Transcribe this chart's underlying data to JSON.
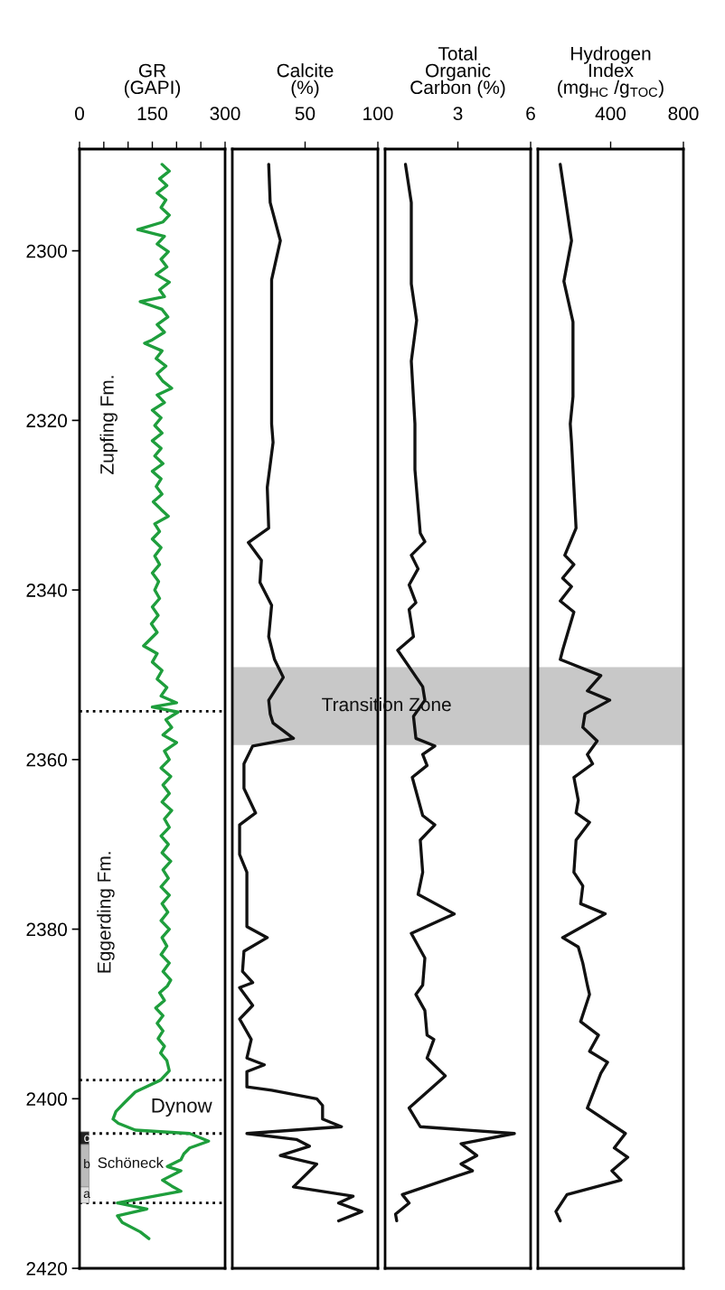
{
  "chart_data": [
    {
      "type": "line",
      "title": "GR\n(GAPI)",
      "orientation": "horizontal",
      "color": "#1e9e3c",
      "x": [
        2289.8,
        2290.6,
        2291.5,
        2292.3,
        2293.2,
        2294.0,
        2294.9,
        2295.8,
        2296.6,
        2297.5,
        2298.3,
        2299.2,
        2300.1,
        2301.0,
        2301.9,
        2302.8,
        2303.7,
        2304.6,
        2305.4,
        2306.0,
        2306.9,
        2307.8,
        2308.7,
        2309.6,
        2310.5,
        2310.9,
        2311.8,
        2312.7,
        2313.6,
        2314.5,
        2315.4,
        2316.2,
        2317.0,
        2317.9,
        2318.8,
        2319.7,
        2320.6,
        2321.5,
        2322.4,
        2323.3,
        2324.2,
        2325.1,
        2326.0,
        2326.9,
        2327.8,
        2328.7,
        2329.6,
        2330.5,
        2331.3,
        2332.2,
        2333.1,
        2334.0,
        2335.0,
        2336.0,
        2337.0,
        2338.0,
        2339.0,
        2340.0,
        2341.0,
        2342.0,
        2343.0,
        2344.0,
        2345.0,
        2346.6,
        2347.5,
        2348.5,
        2349.5,
        2350.5,
        2351.5,
        2352.5,
        2353.3,
        2353.8,
        2354.4,
        2355.3,
        2356.2,
        2357.1,
        2358.0,
        2359.0,
        2360.0,
        2361.0,
        2362.0,
        2363.0,
        2364.0,
        2365.0,
        2366.0,
        2367.0,
        2368.0,
        2369.0,
        2370.0,
        2371.0,
        2372.0,
        2373.0,
        2374.0,
        2375.0,
        2376.0,
        2377.0,
        2378.0,
        2379.0,
        2380.0,
        2381.0,
        2382.0,
        2383.0,
        2384.0,
        2385.0,
        2386.0,
        2386.7,
        2387.5,
        2388.4,
        2389.3,
        2390.2,
        2391.1,
        2392.0,
        2392.9,
        2393.8,
        2394.6,
        2395.5,
        2396.7,
        2397.8,
        2399.2,
        2400.5,
        2401.5,
        2402.4,
        2402.9,
        2403.7,
        2404.1,
        2405.0,
        2405.8,
        2406.5,
        2407.2,
        2408.0,
        2408.5,
        2409.6,
        2410.3,
        2410.9,
        2411.7,
        2412.3,
        2413.0,
        2413.8,
        2414.6,
        2415.7,
        2416.5
      ],
      "values": [
        170,
        185,
        165,
        180,
        160,
        178,
        168,
        185,
        172,
        120,
        175,
        160,
        183,
        168,
        180,
        158,
        185,
        165,
        175,
        125,
        170,
        182,
        160,
        175,
        150,
        134,
        170,
        158,
        178,
        160,
        172,
        190,
        160,
        175,
        150,
        168,
        155,
        170,
        150,
        168,
        155,
        172,
        150,
        168,
        158,
        170,
        152,
        168,
        183,
        155,
        165,
        150,
        168,
        155,
        165,
        150,
        163,
        155,
        165,
        150,
        162,
        148,
        160,
        132,
        160,
        150,
        170,
        160,
        180,
        168,
        200,
        150,
        203,
        178,
        190,
        172,
        200,
        175,
        185,
        168,
        188,
        172,
        185,
        170,
        190,
        175,
        185,
        168,
        183,
        170,
        188,
        172,
        183,
        168,
        185,
        170,
        182,
        168,
        185,
        170,
        180,
        168,
        185,
        172,
        188,
        181,
        165,
        175,
        157,
        172,
        160,
        172,
        162,
        175,
        167,
        180,
        185,
        167,
        115,
        92,
        75,
        69,
        80,
        115,
        227,
        266,
        227,
        215,
        209,
        181,
        209,
        171,
        190,
        209,
        134,
        78,
        139,
        78,
        88,
        125,
        143
      ],
      "xlim": [
        0,
        300
      ],
      "xticks": [
        0,
        {
          "value": 50,
          "label": null
        },
        {
          "value": 100,
          "label": null
        },
        150,
        {
          "value": 200,
          "label": null
        },
        {
          "value": 250,
          "label": null
        },
        300
      ],
      "ylim": [
        2420,
        2288
      ],
      "yticks": [
        2300,
        2320,
        2340,
        2360,
        2380,
        2400,
        2420
      ],
      "ref_lines": [
        {
          "axis": "y",
          "value": 2354.3,
          "line_style": "dotted",
          "color": "#000000"
        },
        {
          "axis": "y",
          "value": 2397.8,
          "line_style": "dotted",
          "color": "#000000"
        },
        {
          "axis": "y",
          "value": 2404.1,
          "line_style": "dotted",
          "color": "#000000"
        },
        {
          "axis": "y",
          "value": 2412.3,
          "line_style": "dotted",
          "color": "#000000"
        }
      ],
      "annotations": [
        "Zupfing Fm.",
        "Eggerding Fm.",
        "Dynow",
        "Schöneck",
        "c",
        "b",
        "a"
      ]
    },
    {
      "type": "line",
      "title": "Calcite\n(%)",
      "orientation": "horizontal",
      "color": "#111111",
      "tick_labels": "x",
      "x": [
        2289.8,
        2294.3,
        2298.8,
        2303.4,
        2320.4,
        2322.6,
        2327.9,
        2332.7,
        2334.4,
        2336.5,
        2339.1,
        2341.8,
        2345.5,
        2348.2,
        2350.3,
        2353.0,
        2354.6,
        2355.7,
        2357.5,
        2358.4,
        2360.5,
        2363.4,
        2366.3,
        2367.7,
        2371.2,
        2373.3,
        2379.7,
        2381.0,
        2382.6,
        2385.0,
        2386.3,
        2386.9,
        2389.0,
        2390.6,
        2393.0,
        2395.2,
        2396.0,
        2396.8,
        2398.6,
        2399.0,
        2400.0,
        2400.8,
        2402.4,
        2403.3,
        2404.1,
        2404.8,
        2405.6,
        2406.7,
        2407.7,
        2410.4,
        2411.5,
        2412.3,
        2413.3,
        2414.4
      ],
      "values": [
        25,
        26,
        33,
        27,
        27,
        28,
        24,
        25,
        11,
        20,
        19,
        27,
        25,
        29,
        35,
        25,
        26,
        28,
        42,
        14,
        8,
        8,
        16,
        5,
        5,
        10,
        10,
        24,
        8,
        7,
        14,
        5,
        14,
        5,
        13,
        10,
        22,
        10,
        10,
        27,
        58,
        62,
        62,
        75,
        10,
        44,
        53,
        33,
        58,
        42,
        83,
        73,
        89,
        73
      ],
      "xlim": [
        0,
        100
      ],
      "xticks": [
        50,
        100
      ],
      "ylim": [
        2420,
        2288
      ],
      "bands": [
        {
          "axis": "y",
          "from": 2349.1,
          "to": 2358.3,
          "label": "Transition Zone",
          "color": "#c8c8c8"
        }
      ]
    },
    {
      "type": "line",
      "title": "Total\nOrganic\nCarbon (%)",
      "orientation": "horizontal",
      "color": "#111111",
      "tick_labels": "x",
      "x": [
        2289.8,
        2294.3,
        2303.9,
        2308.2,
        2313.0,
        2320.4,
        2325.8,
        2333.3,
        2334.3,
        2335.9,
        2337.5,
        2339.4,
        2341.5,
        2342.3,
        2345.5,
        2347.1,
        2351.4,
        2353.0,
        2354.9,
        2357.5,
        2358.4,
        2359.4,
        2360.7,
        2362.1,
        2366.6,
        2367.7,
        2369.5,
        2373.3,
        2375.9,
        2378.2,
        2380.5,
        2383.4,
        2386.6,
        2387.7,
        2389.6,
        2392.5,
        2393.0,
        2395.2,
        2397.3,
        2401.1,
        2403.3,
        2404.1,
        2405.3,
        2406.7,
        2407.7,
        2408.5,
        2411.3,
        2412.3,
        2413.6,
        2414.4
      ],
      "values": [
        0.84,
        1.08,
        1.08,
        1.3,
        1.08,
        1.23,
        1.23,
        1.45,
        1.64,
        1.08,
        1.36,
        0.99,
        1.27,
        0.99,
        1.17,
        0.52,
        1.55,
        1.64,
        1.17,
        1.27,
        2.05,
        1.55,
        1.73,
        1.12,
        1.55,
        2.05,
        1.45,
        1.55,
        1.36,
        2.85,
        1.08,
        1.64,
        1.55,
        1.27,
        1.64,
        1.73,
        2.01,
        1.73,
        2.48,
        0.99,
        1.45,
        5.33,
        3.13,
        3.78,
        3.13,
        3.6,
        0.71,
        0.99,
        0.43,
        0.48
      ],
      "xlim": [
        0,
        6
      ],
      "xticks": [
        3,
        6
      ],
      "ylim": [
        2420,
        2288
      ],
      "bands": [
        {
          "axis": "y",
          "from": 2349.1,
          "to": 2358.3,
          "color": "#c8c8c8"
        }
      ]
    },
    {
      "type": "line",
      "title": "Hydrogen\nIndex\n(mg$_{HC}$ /g$_{TOC}$)",
      "orientation": "horizontal",
      "color": "#111111",
      "tick_labels": "x",
      "x": [
        2289.8,
        2298.8,
        2303.6,
        2308.4,
        2317.2,
        2320.4,
        2322.6,
        2332.7,
        2335.9,
        2337.0,
        2338.6,
        2339.6,
        2341.3,
        2342.6,
        2347.1,
        2348.2,
        2350.1,
        2351.9,
        2353.0,
        2354.6,
        2356.2,
        2357.8,
        2359.4,
        2360.5,
        2362.1,
        2364.8,
        2366.3,
        2367.4,
        2369.5,
        2373.3,
        2374.9,
        2377.0,
        2378.2,
        2381.0,
        2382.1,
        2384.0,
        2386.6,
        2387.7,
        2390.9,
        2392.5,
        2394.4,
        2395.7,
        2397.0,
        2401.1,
        2404.1,
        2405.8,
        2406.9,
        2408.5,
        2409.6,
        2411.3,
        2413.3,
        2414.4
      ],
      "values": [
        123,
        185,
        143,
        193,
        193,
        178,
        185,
        210,
        148,
        198,
        136,
        185,
        123,
        198,
        136,
        123,
        346,
        272,
        395,
        259,
        247,
        326,
        272,
        301,
        198,
        222,
        210,
        284,
        210,
        198,
        247,
        235,
        370,
        136,
        222,
        247,
        272,
        284,
        235,
        333,
        284,
        383,
        346,
        272,
        481,
        420,
        494,
        407,
        457,
        160,
        99,
        123
      ],
      "xlim": [
        0,
        800
      ],
      "xticks": [
        400,
        800
      ],
      "ylim": [
        2420,
        2288
      ],
      "bands": [
        {
          "axis": "y",
          "from": 2349.1,
          "to": 2358.3,
          "color": "#c8c8c8"
        }
      ]
    }
  ]
}
